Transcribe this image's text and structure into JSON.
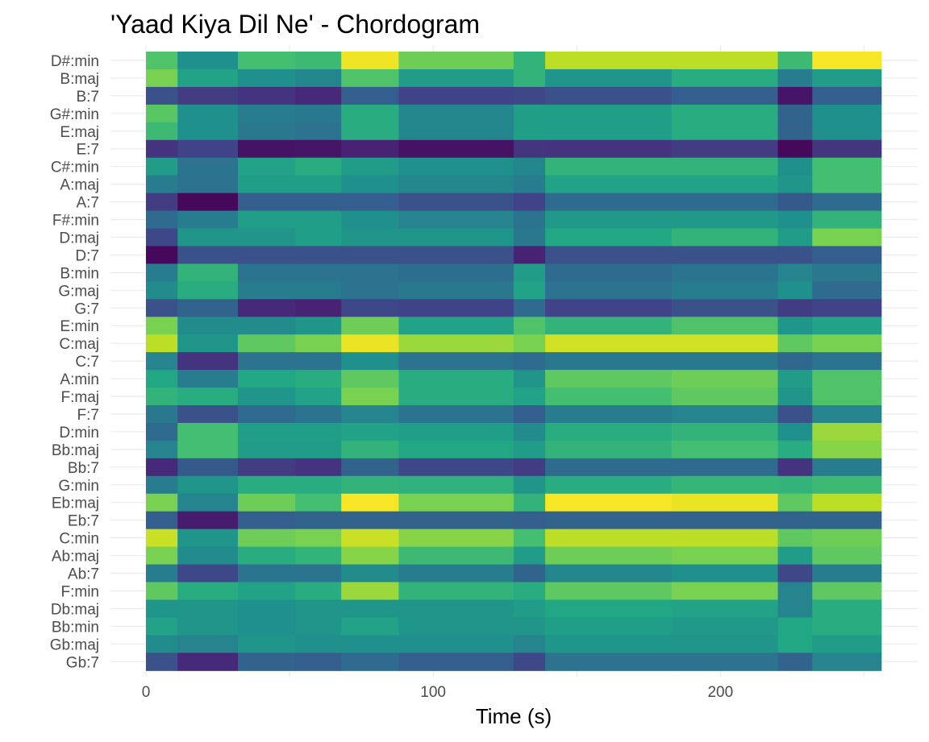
{
  "chart_data": {
    "type": "heatmap",
    "title": "'Yaad Kiya Dil Ne' - Chordogram",
    "xlabel": "Time (s)",
    "ylabel": "",
    "xlim": [
      0,
      260
    ],
    "x_ticks": [
      0,
      100,
      200
    ],
    "grid": true,
    "legend": "none",
    "colormap": "viridis",
    "value_range": [
      0,
      1
    ],
    "segments": [
      {
        "start": 0,
        "end": 11
      },
      {
        "start": 11,
        "end": 32
      },
      {
        "start": 32,
        "end": 52
      },
      {
        "start": 52,
        "end": 68
      },
      {
        "start": 68,
        "end": 88
      },
      {
        "start": 88,
        "end": 128
      },
      {
        "start": 128,
        "end": 139
      },
      {
        "start": 139,
        "end": 183
      },
      {
        "start": 183,
        "end": 220
      },
      {
        "start": 220,
        "end": 232
      },
      {
        "start": 232,
        "end": 256
      }
    ],
    "chords": [
      "D#:min",
      "B:maj",
      "B:7",
      "G#:min",
      "E:maj",
      "E:7",
      "C#:min",
      "A:maj",
      "A:7",
      "F#:min",
      "D:maj",
      "D:7",
      "B:min",
      "G:maj",
      "G:7",
      "E:min",
      "C:maj",
      "C:7",
      "A:min",
      "F:maj",
      "F:7",
      "D:min",
      "Bb:maj",
      "Bb:7",
      "G:min",
      "Eb:maj",
      "Eb:7",
      "C:min",
      "Ab:maj",
      "Ab:7",
      "F:min",
      "Db:maj",
      "Bb:min",
      "Gb:maj",
      "Gb:7"
    ],
    "values": [
      [
        0.72,
        0.5,
        0.7,
        0.68,
        0.98,
        0.78,
        0.65,
        0.9,
        0.9,
        0.68,
        0.99
      ],
      [
        0.8,
        0.58,
        0.5,
        0.46,
        0.72,
        0.55,
        0.65,
        0.52,
        0.62,
        0.42,
        0.55
      ],
      [
        0.25,
        0.18,
        0.15,
        0.12,
        0.3,
        0.2,
        0.22,
        0.25,
        0.3,
        0.06,
        0.3
      ],
      [
        0.74,
        0.5,
        0.42,
        0.4,
        0.62,
        0.46,
        0.56,
        0.56,
        0.62,
        0.32,
        0.5
      ],
      [
        0.68,
        0.5,
        0.4,
        0.38,
        0.62,
        0.46,
        0.56,
        0.56,
        0.62,
        0.32,
        0.5
      ],
      [
        0.15,
        0.2,
        0.05,
        0.06,
        0.1,
        0.05,
        0.16,
        0.15,
        0.18,
        0.02,
        0.16
      ],
      [
        0.55,
        0.38,
        0.58,
        0.62,
        0.55,
        0.5,
        0.46,
        0.65,
        0.65,
        0.5,
        0.7
      ],
      [
        0.42,
        0.38,
        0.56,
        0.56,
        0.5,
        0.46,
        0.42,
        0.58,
        0.58,
        0.52,
        0.7
      ],
      [
        0.18,
        0.02,
        0.3,
        0.3,
        0.3,
        0.25,
        0.2,
        0.35,
        0.35,
        0.28,
        0.35
      ],
      [
        0.35,
        0.42,
        0.56,
        0.56,
        0.5,
        0.45,
        0.38,
        0.54,
        0.54,
        0.5,
        0.65
      ],
      [
        0.22,
        0.52,
        0.52,
        0.56,
        0.52,
        0.52,
        0.4,
        0.6,
        0.65,
        0.55,
        0.8
      ],
      [
        0.02,
        0.25,
        0.25,
        0.25,
        0.25,
        0.25,
        0.1,
        0.25,
        0.25,
        0.25,
        0.3
      ],
      [
        0.42,
        0.65,
        0.38,
        0.38,
        0.38,
        0.36,
        0.55,
        0.35,
        0.38,
        0.45,
        0.4
      ],
      [
        0.48,
        0.62,
        0.42,
        0.42,
        0.38,
        0.4,
        0.58,
        0.38,
        0.42,
        0.5,
        0.35
      ],
      [
        0.25,
        0.32,
        0.12,
        0.1,
        0.22,
        0.2,
        0.35,
        0.2,
        0.25,
        0.18,
        0.2
      ],
      [
        0.8,
        0.48,
        0.48,
        0.52,
        0.78,
        0.58,
        0.72,
        0.65,
        0.72,
        0.52,
        0.58
      ],
      [
        0.9,
        0.52,
        0.75,
        0.8,
        0.97,
        0.85,
        0.8,
        0.93,
        0.93,
        0.75,
        0.8
      ],
      [
        0.45,
        0.15,
        0.38,
        0.38,
        0.5,
        0.38,
        0.35,
        0.4,
        0.4,
        0.34,
        0.38
      ],
      [
        0.6,
        0.42,
        0.6,
        0.62,
        0.75,
        0.62,
        0.52,
        0.75,
        0.78,
        0.55,
        0.72
      ],
      [
        0.65,
        0.62,
        0.52,
        0.58,
        0.8,
        0.62,
        0.58,
        0.7,
        0.75,
        0.52,
        0.72
      ],
      [
        0.4,
        0.25,
        0.35,
        0.38,
        0.45,
        0.38,
        0.3,
        0.42,
        0.45,
        0.25,
        0.45
      ],
      [
        0.35,
        0.7,
        0.56,
        0.56,
        0.58,
        0.56,
        0.48,
        0.62,
        0.65,
        0.5,
        0.85
      ],
      [
        0.45,
        0.7,
        0.55,
        0.55,
        0.65,
        0.6,
        0.55,
        0.65,
        0.7,
        0.62,
        0.82
      ],
      [
        0.12,
        0.28,
        0.18,
        0.15,
        0.32,
        0.22,
        0.18,
        0.35,
        0.35,
        0.15,
        0.42
      ],
      [
        0.42,
        0.52,
        0.62,
        0.62,
        0.65,
        0.64,
        0.52,
        0.62,
        0.66,
        0.65,
        0.68
      ],
      [
        0.8,
        0.45,
        0.78,
        0.7,
        0.99,
        0.8,
        0.65,
        0.99,
        0.97,
        0.75,
        0.9
      ],
      [
        0.3,
        0.08,
        0.3,
        0.32,
        0.32,
        0.32,
        0.3,
        0.32,
        0.32,
        0.32,
        0.32
      ],
      [
        0.92,
        0.52,
        0.78,
        0.8,
        0.92,
        0.82,
        0.7,
        0.9,
        0.9,
        0.75,
        0.78
      ],
      [
        0.8,
        0.48,
        0.62,
        0.65,
        0.82,
        0.68,
        0.55,
        0.78,
        0.8,
        0.55,
        0.75
      ],
      [
        0.42,
        0.22,
        0.38,
        0.38,
        0.48,
        0.42,
        0.32,
        0.46,
        0.5,
        0.22,
        0.42
      ],
      [
        0.75,
        0.62,
        0.58,
        0.62,
        0.85,
        0.65,
        0.62,
        0.75,
        0.8,
        0.45,
        0.75
      ],
      [
        0.52,
        0.52,
        0.5,
        0.52,
        0.52,
        0.52,
        0.55,
        0.6,
        0.58,
        0.45,
        0.62
      ],
      [
        0.58,
        0.52,
        0.5,
        0.52,
        0.58,
        0.52,
        0.52,
        0.56,
        0.54,
        0.6,
        0.62
      ],
      [
        0.48,
        0.45,
        0.52,
        0.5,
        0.5,
        0.5,
        0.45,
        0.52,
        0.52,
        0.6,
        0.55
      ],
      [
        0.25,
        0.12,
        0.32,
        0.3,
        0.35,
        0.3,
        0.22,
        0.38,
        0.38,
        0.32,
        0.45
      ]
    ]
  }
}
